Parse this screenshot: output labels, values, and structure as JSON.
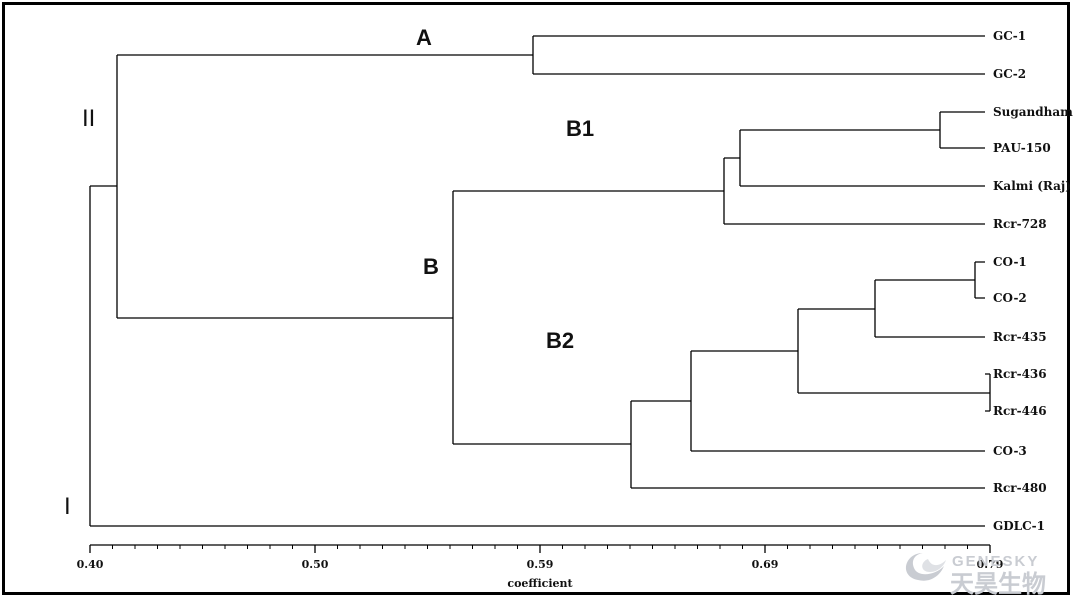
{
  "figure": {
    "axis": {
      "title": "coefficient",
      "ticks": [
        "0.40",
        "0.50",
        "0.59",
        "0.69",
        "0.79"
      ]
    },
    "cluster_labels": {
      "A": "A",
      "B": "B",
      "B1": "B1",
      "B2": "B2",
      "I": "I",
      "II": "II"
    },
    "leaves": [
      "GC-1",
      "GC-2",
      "Sugandham",
      "PAU-150",
      "Kalmi (Raj)",
      "Rcr-728",
      "CO-1",
      "CO-2",
      "Rcr-435",
      "Rcr-436",
      "Rcr-446",
      "CO-3",
      "Rcr-480",
      "GDLC-1"
    ],
    "watermark": {
      "latin": "GENESKY",
      "chinese": "天昊生物"
    },
    "colors": {
      "line": "#000000",
      "watermark": "#c9ccd2"
    }
  }
}
